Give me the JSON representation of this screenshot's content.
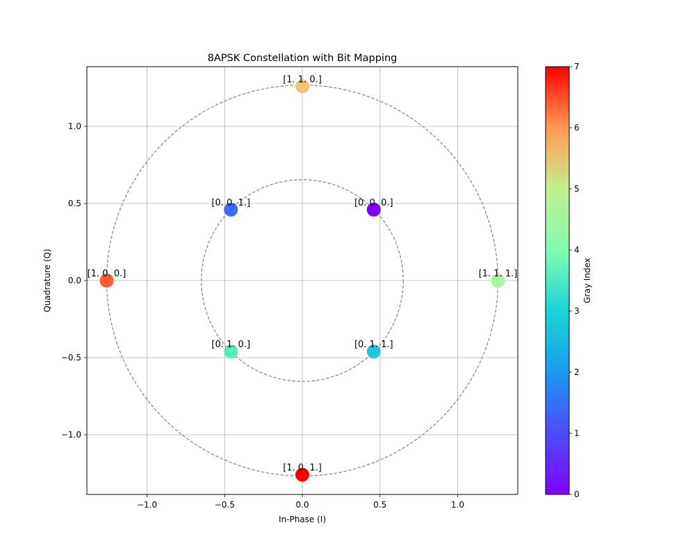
{
  "chart_data": {
    "type": "scatter",
    "title": "8APSK Constellation with Bit Mapping",
    "xlabel": "In-Phase (I)",
    "ylabel": "Quadrature (Q)",
    "xlim": [
      -1.3875,
      1.3875
    ],
    "ylim": [
      -1.3875,
      1.3875
    ],
    "xticks": [
      -1.0,
      -0.5,
      0.0,
      0.5,
      1.0
    ],
    "xtick_labels": [
      "−1.0",
      "−0.5",
      "0.0",
      "0.5",
      "1.0"
    ],
    "yticks": [
      -1.0,
      -0.5,
      0.0,
      0.5,
      1.0
    ],
    "ytick_labels": [
      "−1.0",
      "−0.5",
      "0.0",
      "0.5",
      "1.0"
    ],
    "grid": true,
    "reference_circles": [
      {
        "radius": 0.65,
        "style": "dashed",
        "color": "#808080"
      },
      {
        "radius": 1.26,
        "style": "dashed",
        "color": "#808080"
      }
    ],
    "points": [
      {
        "x": 0.46,
        "y": 0.46,
        "label": "[0. 0. 0.]",
        "gray_index": 0,
        "color": "#8000ff"
      },
      {
        "x": -0.46,
        "y": 0.46,
        "label": "[0. 0. 1.]",
        "gray_index": 1,
        "color": "#3b6cf7"
      },
      {
        "x": 0.46,
        "y": -0.46,
        "label": "[0. 1. 1.]",
        "gray_index": 2,
        "color": "#1fc7e4"
      },
      {
        "x": -0.46,
        "y": -0.46,
        "label": "[0. 1. 0.]",
        "gray_index": 3,
        "color": "#4ef0b9"
      },
      {
        "x": 1.26,
        "y": 0.0,
        "label": "[1. 1. 1.]",
        "gray_index": 4,
        "color": "#a4f89f"
      },
      {
        "x": 0.0,
        "y": 1.26,
        "label": "[1. 1. 0.]",
        "gray_index": 5,
        "color": "#eec47a"
      },
      {
        "x": -1.26,
        "y": 0.0,
        "label": "[1. 0. 0.]",
        "gray_index": 6,
        "color": "#ff5b31"
      },
      {
        "x": 0.0,
        "y": -1.26,
        "label": "[1. 0. 1.]",
        "gray_index": 7,
        "color": "#ff0000"
      }
    ],
    "colorbar": {
      "label": "Gray Index",
      "range": [
        0,
        7
      ],
      "ticks": [
        0,
        1,
        2,
        3,
        4,
        5,
        6,
        7
      ],
      "tick_labels": [
        "0",
        "1",
        "2",
        "3",
        "4",
        "5",
        "6",
        "7"
      ],
      "colormap": "rainbow"
    }
  }
}
